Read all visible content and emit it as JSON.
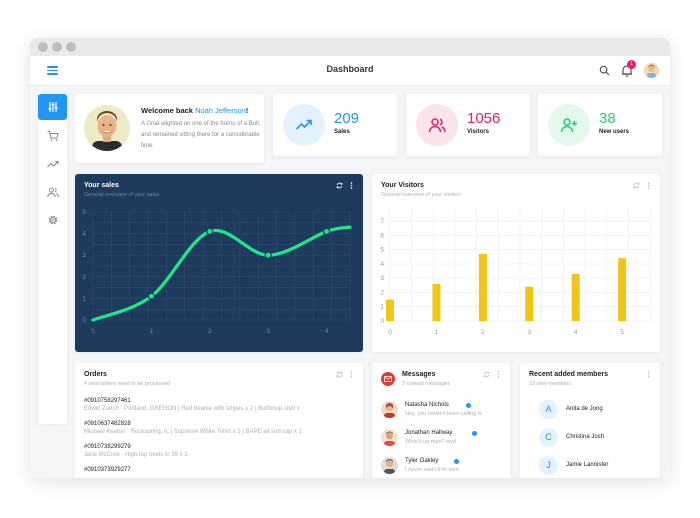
{
  "app": {
    "title": "Dashboard",
    "notification_count": "1"
  },
  "welcome": {
    "prefix": "Welcome back ",
    "name": "Noah Jefferson",
    "suffix": "!",
    "text": "A Gnat alighted on one of the horns of a Bull, and remained sitting there for a considerable time."
  },
  "stats": [
    {
      "value": "209",
      "label": "Sales",
      "color": "#2196f3",
      "bg": "#e3f2fd",
      "icon": "trending-up-icon"
    },
    {
      "value": "1056",
      "label": "Visitors",
      "color": "#e91e63",
      "bg": "#fce4ec",
      "icon": "users-icon"
    },
    {
      "value": "38",
      "label": "New users",
      "color": "#2ecc71",
      "bg": "#e4f8ec",
      "icon": "user-plus-icon"
    }
  ],
  "sales": {
    "title": "Your sales",
    "subtitle": "General overview of your sales",
    "chart_data": {
      "type": "line",
      "x": [
        0,
        1,
        2,
        3,
        4,
        4.4
      ],
      "values": [
        0,
        1.1,
        4.1,
        3.0,
        4.1,
        4.3
      ],
      "markers": [
        1,
        2,
        3,
        4
      ],
      "xticks": [
        "0",
        "1",
        "2",
        "3",
        "4"
      ],
      "yticks": [
        "0",
        "1",
        "2",
        "3",
        "4",
        "5"
      ],
      "xlim": [
        0,
        4.4
      ],
      "ylim": [
        0,
        5
      ],
      "color": "#1de98b",
      "background": "#1e3a5c"
    }
  },
  "visitors": {
    "title": "Your Visitors",
    "subtitle": "General overview of your visitors",
    "chart_data": {
      "type": "bar",
      "x": [
        0,
        1,
        2,
        3,
        4,
        5
      ],
      "values": [
        1.5,
        2.6,
        4.7,
        2.4,
        3.3,
        4.4
      ],
      "xticks": [
        "0",
        "1",
        "2",
        "3",
        "4",
        "5"
      ],
      "yticks": [
        "0",
        "1",
        "2",
        "3",
        "4",
        "5",
        "6",
        "7"
      ],
      "xlim": [
        0,
        5.6
      ],
      "ylim": [
        0,
        7.5
      ],
      "color": "#f0c419"
    }
  },
  "orders": {
    "title": "Orders",
    "subtitle": "4 new orders need to be processed",
    "items": [
      {
        "number": "#0910758297461",
        "detail": "Edwin Zurich  ·  Portland, OREGON  |  Red beanie with stripes x 2  |  Buttonup shirt x"
      },
      {
        "number": "#0910637482828",
        "detail": "Michael Keaton  ·  Rockspring, IL  |  Supreme White Tshirt x 1  |  BAPE all sort cap x 1"
      },
      {
        "number": "#0910738299279",
        "detail": "Jane McCree  ·  High top heels in 39 x 1"
      },
      {
        "number": "#0910373929277",
        "detail": ""
      }
    ]
  },
  "messages": {
    "title": "Messages",
    "subtitle": "3 unread messages",
    "items": [
      {
        "name": "Natasha Nichols",
        "text": "Hey, you haven't been calling m"
      },
      {
        "name": "Jonathan Hallway",
        "text": "What's up man? wyd"
      },
      {
        "name": "Tyler Oakley",
        "text": "I never said I'd fo sure"
      }
    ]
  },
  "members": {
    "title": "Recent added members",
    "subtitle": "23 new members",
    "items": [
      {
        "initial": "A",
        "name": "Anita de Jong"
      },
      {
        "initial": "C",
        "name": "Christina Josh"
      },
      {
        "initial": "J",
        "name": "Jamie Lannister"
      }
    ]
  }
}
